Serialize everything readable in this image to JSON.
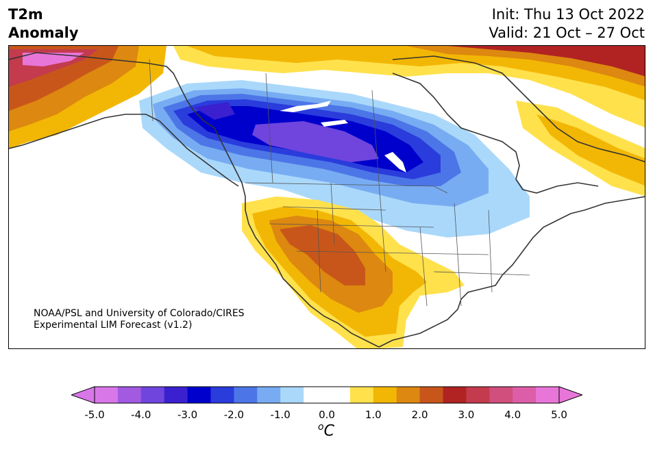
{
  "title": {
    "line1": "T2m",
    "line2": "Anomaly"
  },
  "init": "Init: Thu 13 Oct 2022",
  "valid": "Valid: 21 Oct – 27 Oct",
  "credit": {
    "line1": "NOAA/PSL and University of Colorado/CIRES",
    "line2": "Experimental LIM Forecast (v1.2)"
  },
  "colorbar": {
    "ticks": [
      "-5.0",
      "-4.0",
      "-3.0",
      "-2.0",
      "-1.0",
      "0.0",
      "1.0",
      "2.0",
      "3.0",
      "4.0",
      "5.0"
    ],
    "units": "C",
    "units_prefix": "o",
    "colors": [
      "#d877e8",
      "#a15ae0",
      "#6f45dd",
      "#3a20cf",
      "#0000cc",
      "#2a3cdc",
      "#4c76e7",
      "#78acf2",
      "#aad8fa",
      "#ffffff",
      "#ffffff",
      "#ffe14c",
      "#f2b705",
      "#dd8810",
      "#c8561a",
      "#b02322",
      "#c33b4d",
      "#d04f7d",
      "#dd5ea8",
      "#e876d9"
    ],
    "min_color": "#d877e8",
    "max_color": "#e876d9"
  }
}
